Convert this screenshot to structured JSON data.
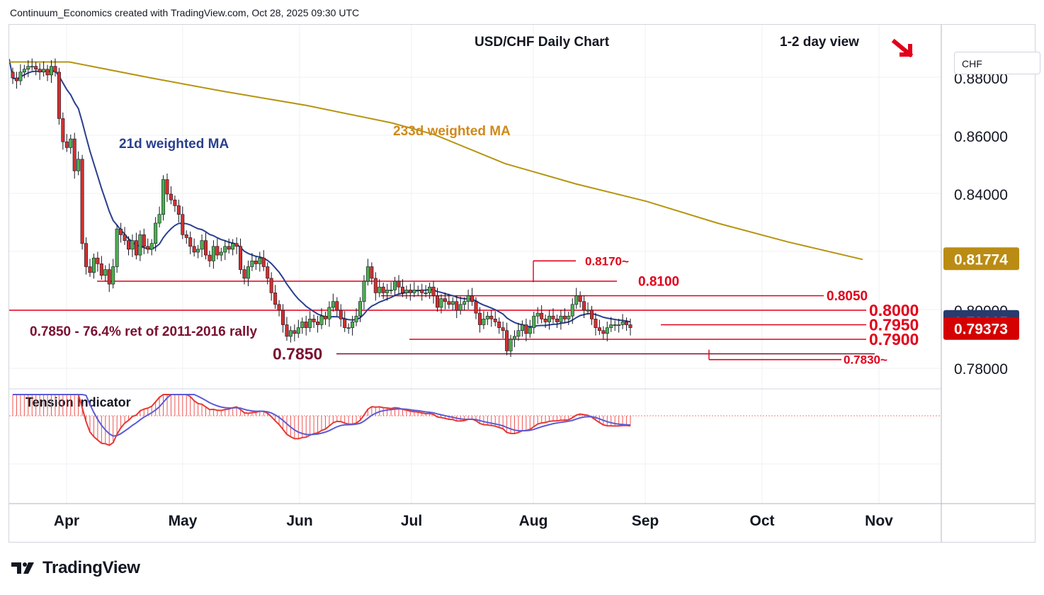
{
  "header": {
    "attribution": "Continuum_Economics created with TradingView.com, Oct 28, 2025 09:30 UTC"
  },
  "branding": {
    "logo_text": "TradingView",
    "logo_icon": "tradingview-logo-icon"
  },
  "colors": {
    "up_candle": "#4caf50",
    "down_candle": "#d32f2f",
    "wick": "#131722",
    "ma21": "#2a3f8f",
    "ma233": "#b59410",
    "level_red": "#e0001a",
    "level_maroon": "#7a1030",
    "tension_fill": "#ef5350",
    "tension_blue": "#5b5bd6",
    "tag_gold": "#bb8c14",
    "tag_navy": "#283b6e",
    "tag_red": "#d50000"
  },
  "chart_data": {
    "type": "candlestick",
    "title": "USD/CHF Daily Chart",
    "view_label": "1-2 day view",
    "view_icon": "arrow-down-right-icon",
    "currency": "CHF",
    "ylim": [
      0.774,
      0.892
    ],
    "y_ticks": [
      "0.88000",
      "0.86000",
      "0.84000",
      "0.80000",
      "0.78000"
    ],
    "x_ticks": [
      "Apr",
      "May",
      "Jun",
      "Jul",
      "Aug",
      "Sep",
      "Oct",
      "Nov"
    ],
    "ma_labels": {
      "ma21": "21d weighted MA",
      "ma233": "233d weighted MA"
    },
    "level_labels": [
      "0.8170~",
      "0.8100",
      "0.8050",
      "0.8000",
      "0.7950",
      "0.7900",
      "0.7850",
      "0.7830~"
    ],
    "annotation": "0.7850 - 76.4% ret of 2011-2016 rally",
    "price_tags": [
      {
        "label": "0.81774",
        "value": 0.81774,
        "color": "gold"
      },
      {
        "label": "0.79615",
        "value": 0.79615,
        "color": "navy"
      },
      {
        "label": "0.79373",
        "value": 0.79373,
        "color": "red"
      }
    ],
    "indicator": {
      "name": "Tension Indicator"
    },
    "candles_close": [
      0.88,
      0.879,
      0.882,
      0.883,
      0.884,
      0.884,
      0.883,
      0.882,
      0.883,
      0.881,
      0.884,
      0.882,
      0.866,
      0.858,
      0.856,
      0.859,
      0.848,
      0.852,
      0.823,
      0.815,
      0.813,
      0.818,
      0.816,
      0.812,
      0.814,
      0.809,
      0.815,
      0.828,
      0.826,
      0.824,
      0.821,
      0.824,
      0.819,
      0.826,
      0.822,
      0.821,
      0.823,
      0.83,
      0.833,
      0.845,
      0.84,
      0.838,
      0.836,
      0.833,
      0.826,
      0.825,
      0.822,
      0.82,
      0.821,
      0.824,
      0.819,
      0.817,
      0.822,
      0.819,
      0.82,
      0.822,
      0.821,
      0.823,
      0.822,
      0.814,
      0.811,
      0.815,
      0.817,
      0.816,
      0.818,
      0.815,
      0.811,
      0.806,
      0.802,
      0.8,
      0.795,
      0.791,
      0.793,
      0.792,
      0.794,
      0.796,
      0.794,
      0.797,
      0.796,
      0.795,
      0.798,
      0.797,
      0.801,
      0.803,
      0.8,
      0.797,
      0.794,
      0.794,
      0.796,
      0.798,
      0.803,
      0.81,
      0.815,
      0.811,
      0.806,
      0.808,
      0.806,
      0.807,
      0.807,
      0.81,
      0.808,
      0.806,
      0.807,
      0.806,
      0.807,
      0.807,
      0.806,
      0.806,
      0.808,
      0.805,
      0.801,
      0.804,
      0.803,
      0.802,
      0.803,
      0.8,
      0.802,
      0.803,
      0.805,
      0.803,
      0.799,
      0.795,
      0.797,
      0.798,
      0.797,
      0.796,
      0.794,
      0.793,
      0.786,
      0.79,
      0.791,
      0.793,
      0.795,
      0.792,
      0.794,
      0.798,
      0.799,
      0.797,
      0.796,
      0.798,
      0.797,
      0.796,
      0.798,
      0.797,
      0.798,
      0.802,
      0.805,
      0.803,
      0.8,
      0.8,
      0.797,
      0.794,
      0.793,
      0.792,
      0.794,
      0.795,
      0.795,
      0.795,
      0.796,
      0.795,
      0.794
    ]
  }
}
